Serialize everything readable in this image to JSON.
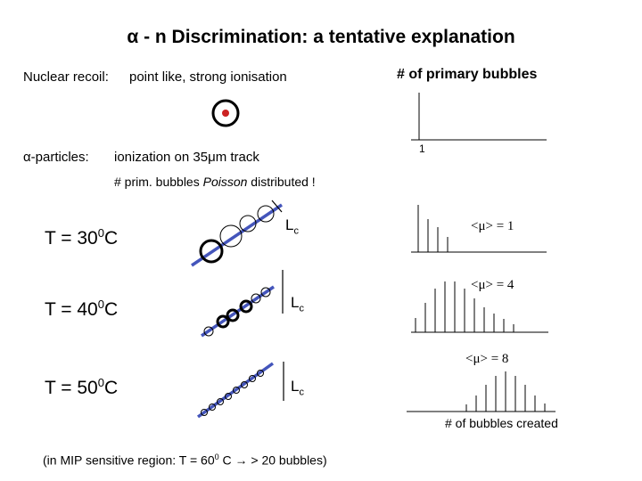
{
  "title": "α - n Discrimination:  a tentative explanation",
  "recoil": {
    "label": "Nuclear recoil:",
    "desc": "point like, strong ionisation"
  },
  "alpha": {
    "label": "α-particles:",
    "desc": "ionization on 35μm track"
  },
  "poisson": {
    "pre": "# prim. bubbles ",
    "word": "Poisson",
    "post": " distributed !"
  },
  "primary_header": "# of primary bubbles",
  "primary_tick": "1",
  "rows": [
    {
      "temp_base": "T = 30",
      "temp_sup": "0",
      "temp_unit": "C",
      "mean": "<μ> = 1"
    },
    {
      "temp_base": "T = 40",
      "temp_sup": "0",
      "temp_unit": "C",
      "mean": "<μ> = 4"
    },
    {
      "temp_base": "T = 50",
      "temp_sup": "0",
      "temp_unit": "C",
      "mean": "<μ> = 8"
    }
  ],
  "lc": {
    "main": "L",
    "sub": "c"
  },
  "bubbles_created": "# of bubbles created",
  "footnote": {
    "pre": "(in MIP sensitive region: T = 60",
    "sup": "0",
    "post": " C → > 20 bubbles)"
  },
  "colors": {
    "track": "#4455bb",
    "recoil_dot": "#cc2222"
  }
}
